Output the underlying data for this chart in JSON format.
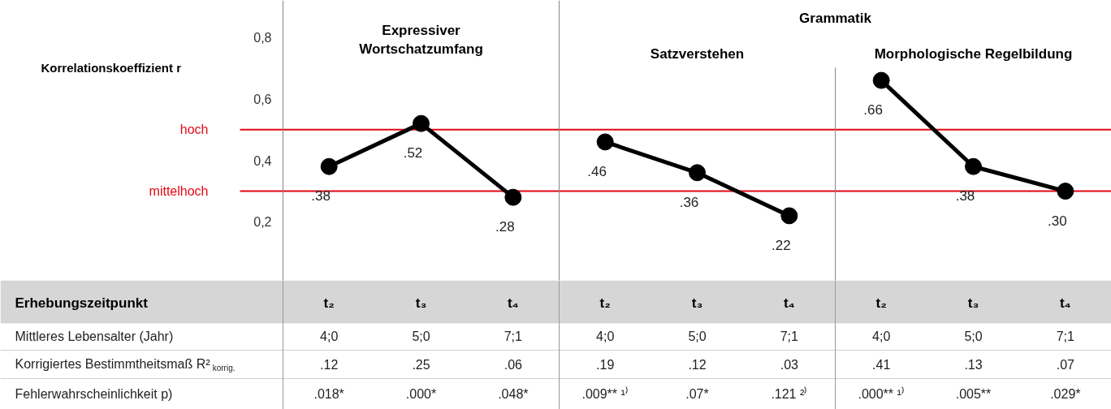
{
  "chart_data": {
    "type": "line",
    "ylabel": "Korrelationskoeffizient r",
    "categories": [
      "t₂",
      "t₃",
      "t₄",
      "t₂",
      "t₃",
      "t₄",
      "t₂",
      "t₃",
      "t₄"
    ],
    "series": [
      {
        "color": "#000000",
        "values": [
          0.38,
          0.52,
          0.28,
          null,
          null,
          null,
          null,
          null,
          null
        ],
        "value_labels": [
          ".38",
          ".52",
          ".28",
          null,
          null,
          null,
          null,
          null,
          null
        ]
      },
      {
        "color": "#000000",
        "values": [
          null,
          null,
          null,
          0.46,
          0.36,
          0.22,
          null,
          null,
          null
        ],
        "value_labels": [
          null,
          null,
          null,
          ".46",
          ".36",
          ".22",
          null,
          null,
          null
        ]
      },
      {
        "color": "#000000",
        "values": [
          null,
          null,
          null,
          null,
          null,
          null,
          0.66,
          0.38,
          0.3
        ],
        "value_labels": [
          null,
          null,
          null,
          null,
          null,
          null,
          ".66",
          ".38",
          ".30"
        ]
      }
    ],
    "ylim": [
      0.01,
      0.92
    ],
    "yticks": [
      {
        "value": 0.2,
        "label": "0,2"
      },
      {
        "value": 0.4,
        "label": "0,4"
      },
      {
        "value": 0.6,
        "label": "0,6"
      },
      {
        "value": 0.8,
        "label": "0,8"
      }
    ],
    "ref_lines": [
      {
        "axis": "y",
        "value": 0.5,
        "label": "hoch",
        "color": "#e30613"
      },
      {
        "axis": "y",
        "value": 0.3,
        "label": "mittelhoch",
        "color": "#e30613"
      }
    ],
    "marker": "circle",
    "line_style": "solid",
    "grid": false,
    "annotations": [
      "Expressiver\nWortschatzumfang",
      "Grammatik",
      "Satzverstehen",
      "Morphologische Regelbildung",
      "Erhebungszeitpunkt",
      "Mittleres Lebensalter (Jahr)",
      "4;0",
      "5;0",
      "7;1",
      "4;0",
      "5;0",
      "7;1",
      "4;0",
      "5;0",
      "7;1",
      "Korrigiertes Bestimmtheitsmaß R²$_{korrig.}$",
      ".12",
      ".25",
      ".06",
      ".19",
      ".12",
      ".03",
      ".41",
      ".13",
      ".07",
      "Fehlerwahrscheinlichkeit p)",
      ".018*",
      ".000*",
      ".048*",
      ".009** ¹⁾",
      ".07*",
      ".121 ²⁾",
      ".000** ¹⁾",
      ".005**",
      ".029*"
    ]
  }
}
